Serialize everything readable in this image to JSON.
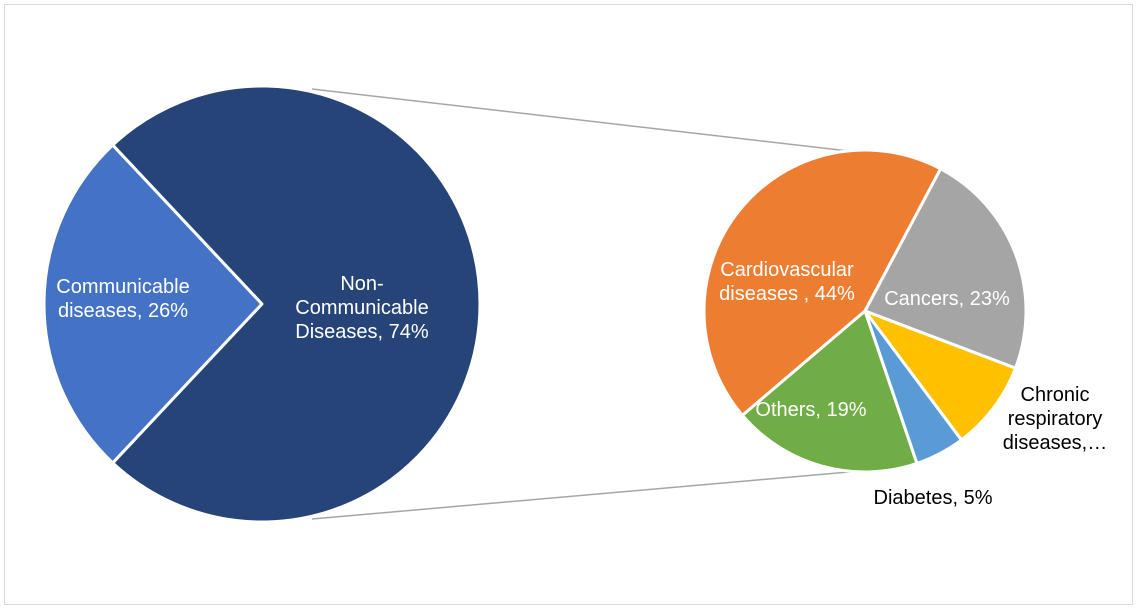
{
  "chart_data": {
    "type": "pie",
    "subtype": "pie-of-pie",
    "title": "",
    "primary": {
      "slices": [
        {
          "label_lines": [
            "Communicable",
            "diseases, 26%"
          ],
          "category": "Communicable diseases",
          "value": 26,
          "color": "#4472C4",
          "label_color": "#ffffff"
        },
        {
          "label_lines": [
            "Non-",
            "Communicable",
            "Diseases, 74%"
          ],
          "category": "Non-Communicable Diseases",
          "value": 74,
          "color": "#264478",
          "label_color": "#ffffff"
        }
      ]
    },
    "secondary": {
      "breakdown_of": "Non-Communicable Diseases",
      "slices": [
        {
          "label_lines": [
            "Cardiovascular",
            "diseases , 44%"
          ],
          "category": "Cardiovascular diseases",
          "value": 44,
          "color": "#ED7D31",
          "label_color": "#ffffff"
        },
        {
          "label_lines": [
            "Cancers, 23%"
          ],
          "category": "Cancers",
          "value": 23,
          "color": "#A5A5A5",
          "label_color": "#ffffff"
        },
        {
          "label_lines": [
            "Chronic",
            "respiratory",
            "diseases,…"
          ],
          "category": "Chronic respiratory diseases",
          "value": 9,
          "color": "#FFC000",
          "label_color": "#000000"
        },
        {
          "label_lines": [
            "Diabetes, 5%"
          ],
          "category": "Diabetes",
          "value": 5,
          "color": "#5B9BD5",
          "label_color": "#000000"
        },
        {
          "label_lines": [
            "Others, 19%"
          ],
          "category": "Others",
          "value": 19,
          "color": "#70AD47",
          "label_color": "#ffffff"
        }
      ]
    },
    "legend": "none",
    "connector_color": "#A6A6A6"
  }
}
